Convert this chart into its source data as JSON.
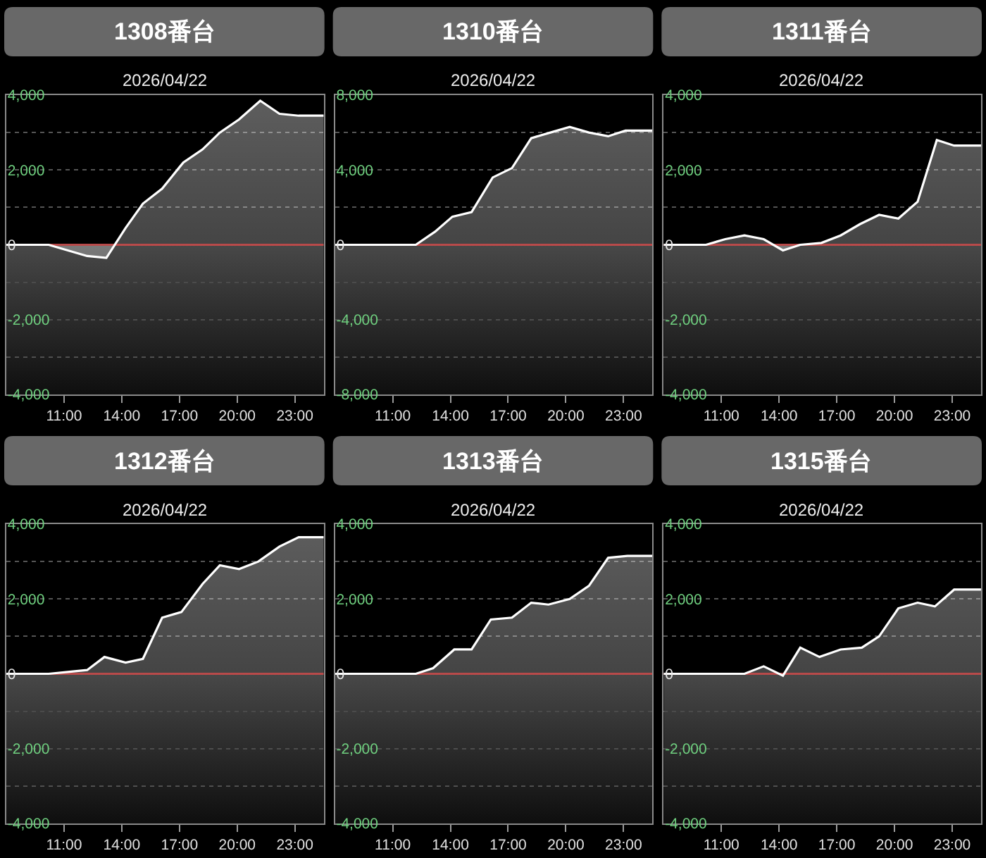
{
  "chart_data": [
    {
      "type": "area",
      "title": "1308番台",
      "subtitle": "2026/04/22",
      "x": [
        8,
        10.2,
        12.2,
        13.2,
        14.2,
        15.1,
        16.1,
        17.2,
        18.2,
        19.1,
        20.1,
        21.2,
        22.2,
        23.2,
        24.5
      ],
      "series": [
        {
          "color": "#ffffff",
          "values": [
            0,
            0,
            -300,
            -350,
            450,
            1100,
            1500,
            2200,
            2550,
            3000,
            3350,
            3850,
            3500,
            3450,
            3450
          ]
        }
      ],
      "xlim": [
        8,
        24.5
      ],
      "xticks": [
        {
          "value": 11,
          "label": "11:00"
        },
        {
          "value": 14,
          "label": "14:00"
        },
        {
          "value": 17,
          "label": "17:00"
        },
        {
          "value": 20,
          "label": "20:00"
        },
        {
          "value": 23,
          "label": "23:00"
        }
      ],
      "ylim": [
        -4000,
        4000
      ],
      "yticks": [
        {
          "value": -4000,
          "label": "-4,000"
        },
        {
          "value": -3000,
          "label": null
        },
        {
          "value": -2000,
          "label": "-2,000"
        },
        {
          "value": -1000,
          "label": null
        },
        0,
        {
          "value": 1000,
          "label": null
        },
        {
          "value": 2000,
          "label": "2,000"
        },
        {
          "value": 3000,
          "label": null
        },
        {
          "value": 4000,
          "label": "4,000"
        }
      ],
      "grid": "y",
      "ref_lines": [
        {
          "axis": "y",
          "value": 0,
          "color": "#b84a4a"
        }
      ],
      "bands": [
        {
          "axis": "y",
          "from": -4000,
          "to": 0,
          "color": "#484848"
        }
      ]
    },
    {
      "type": "area",
      "title": "1310番台",
      "subtitle": "2026/04/22",
      "x": [
        8,
        12.2,
        13.2,
        14.1,
        15.1,
        16.2,
        17.2,
        18.2,
        19.2,
        20.2,
        21.2,
        22.2,
        23.1,
        24.5
      ],
      "series": [
        {
          "color": "#ffffff",
          "values": [
            0,
            0,
            700,
            1500,
            1750,
            3600,
            4100,
            5700,
            6000,
            6300,
            6000,
            5800,
            6100,
            6100
          ]
        }
      ],
      "xlim": [
        8,
        24.5
      ],
      "xticks": [
        {
          "value": 11,
          "label": "11:00"
        },
        {
          "value": 14,
          "label": "14:00"
        },
        {
          "value": 17,
          "label": "17:00"
        },
        {
          "value": 20,
          "label": "20:00"
        },
        {
          "value": 23,
          "label": "23:00"
        }
      ],
      "ylim": [
        -8000,
        8000
      ],
      "yticks": [
        {
          "value": -8000,
          "label": "-8,000"
        },
        {
          "value": -6000,
          "label": null
        },
        {
          "value": -4000,
          "label": "-4,000"
        },
        {
          "value": -2000,
          "label": null
        },
        0,
        {
          "value": 2000,
          "label": null
        },
        {
          "value": 4000,
          "label": "4,000"
        },
        {
          "value": 6000,
          "label": null
        },
        {
          "value": 8000,
          "label": "8,000"
        }
      ],
      "grid": "y",
      "ref_lines": [
        {
          "axis": "y",
          "value": 0,
          "color": "#b84a4a"
        }
      ],
      "bands": [
        {
          "axis": "y",
          "from": -8000,
          "to": 0,
          "color": "#484848"
        }
      ]
    },
    {
      "type": "area",
      "title": "1311番台",
      "subtitle": "2026/04/22",
      "x": [
        8,
        10.2,
        11.2,
        12.2,
        13.2,
        14.2,
        15.1,
        16.2,
        17.2,
        18.2,
        19.2,
        20.2,
        21.2,
        22.2,
        23.1,
        24.5
      ],
      "series": [
        {
          "color": "#ffffff",
          "values": [
            0,
            0,
            150,
            250,
            150,
            -150,
            0,
            50,
            250,
            550,
            800,
            700,
            1150,
            2800,
            2650,
            2650
          ]
        }
      ],
      "xlim": [
        8,
        24.5
      ],
      "xticks": [
        {
          "value": 11,
          "label": "11:00"
        },
        {
          "value": 14,
          "label": "14:00"
        },
        {
          "value": 17,
          "label": "17:00"
        },
        {
          "value": 20,
          "label": "20:00"
        },
        {
          "value": 23,
          "label": "23:00"
        }
      ],
      "ylim": [
        -4000,
        4000
      ],
      "yticks": [
        {
          "value": -4000,
          "label": "-4,000"
        },
        {
          "value": -3000,
          "label": null
        },
        {
          "value": -2000,
          "label": "-2,000"
        },
        {
          "value": -1000,
          "label": null
        },
        0,
        {
          "value": 1000,
          "label": null
        },
        {
          "value": 2000,
          "label": "2,000"
        },
        {
          "value": 3000,
          "label": null
        },
        {
          "value": 4000,
          "label": "4,000"
        }
      ],
      "grid": "y",
      "ref_lines": [
        {
          "axis": "y",
          "value": 0,
          "color": "#b84a4a"
        }
      ],
      "bands": [
        {
          "axis": "y",
          "from": -4000,
          "to": 0,
          "color": "#484848"
        }
      ]
    },
    {
      "type": "area",
      "title": "1312番台",
      "subtitle": "2026/04/22",
      "x": [
        8,
        10.2,
        11.2,
        12.2,
        13.1,
        14.2,
        15.1,
        16.1,
        17.1,
        18.2,
        19.1,
        20.1,
        21.1,
        22.2,
        23.2,
        24.5
      ],
      "series": [
        {
          "color": "#ffffff",
          "values": [
            0,
            0,
            50,
            100,
            450,
            300,
            400,
            1500,
            1650,
            2400,
            2900,
            2800,
            3000,
            3400,
            3650,
            3650
          ]
        }
      ],
      "xlim": [
        8,
        24.5
      ],
      "xticks": [
        {
          "value": 11,
          "label": "11:00"
        },
        {
          "value": 14,
          "label": "14:00"
        },
        {
          "value": 17,
          "label": "17:00"
        },
        {
          "value": 20,
          "label": "20:00"
        },
        {
          "value": 23,
          "label": "23:00"
        }
      ],
      "ylim": [
        -4000,
        4000
      ],
      "yticks": [
        {
          "value": -4000,
          "label": "-4,000"
        },
        {
          "value": -3000,
          "label": null
        },
        {
          "value": -2000,
          "label": "-2,000"
        },
        {
          "value": -1000,
          "label": null
        },
        0,
        {
          "value": 1000,
          "label": null
        },
        {
          "value": 2000,
          "label": "2,000"
        },
        {
          "value": 3000,
          "label": null
        },
        {
          "value": 4000,
          "label": "4,000"
        }
      ],
      "grid": "y",
      "ref_lines": [
        {
          "axis": "y",
          "value": 0,
          "color": "#b84a4a"
        }
      ],
      "bands": [
        {
          "axis": "y",
          "from": -4000,
          "to": 0,
          "color": "#484848"
        }
      ]
    },
    {
      "type": "area",
      "title": "1313番台",
      "subtitle": "2026/04/22",
      "x": [
        8,
        12.2,
        13.1,
        14.2,
        15.1,
        16.1,
        17.2,
        18.2,
        19.1,
        20.2,
        21.2,
        22.2,
        23.2,
        24.5
      ],
      "series": [
        {
          "color": "#ffffff",
          "values": [
            0,
            0,
            150,
            650,
            650,
            1450,
            1500,
            1900,
            1850,
            2000,
            2350,
            3100,
            3150,
            3150
          ]
        }
      ],
      "xlim": [
        8,
        24.5
      ],
      "xticks": [
        {
          "value": 11,
          "label": "11:00"
        },
        {
          "value": 14,
          "label": "14:00"
        },
        {
          "value": 17,
          "label": "17:00"
        },
        {
          "value": 20,
          "label": "20:00"
        },
        {
          "value": 23,
          "label": "23:00"
        }
      ],
      "ylim": [
        -4000,
        4000
      ],
      "yticks": [
        {
          "value": -4000,
          "label": "-4,000"
        },
        {
          "value": -3000,
          "label": null
        },
        {
          "value": -2000,
          "label": "-2,000"
        },
        {
          "value": -1000,
          "label": null
        },
        0,
        {
          "value": 1000,
          "label": null
        },
        {
          "value": 2000,
          "label": "2,000"
        },
        {
          "value": 3000,
          "label": null
        },
        {
          "value": 4000,
          "label": "4,000"
        }
      ],
      "grid": "y",
      "ref_lines": [
        {
          "axis": "y",
          "value": 0,
          "color": "#b84a4a"
        }
      ],
      "bands": [
        {
          "axis": "y",
          "from": -4000,
          "to": 0,
          "color": "#484848"
        }
      ]
    },
    {
      "type": "area",
      "title": "1315番台",
      "subtitle": "2026/04/22",
      "x": [
        8,
        12.2,
        13.2,
        14.2,
        15.1,
        16.1,
        17.2,
        18.3,
        19.2,
        20.2,
        21.2,
        22.1,
        23.1,
        24.5
      ],
      "series": [
        {
          "color": "#ffffff",
          "values": [
            0,
            0,
            200,
            -50,
            700,
            450,
            650,
            700,
            1000,
            1750,
            1900,
            1800,
            2250,
            2250
          ]
        }
      ],
      "xlim": [
        8,
        24.5
      ],
      "xticks": [
        {
          "value": 11,
          "label": "11:00"
        },
        {
          "value": 14,
          "label": "14:00"
        },
        {
          "value": 17,
          "label": "17:00"
        },
        {
          "value": 20,
          "label": "20:00"
        },
        {
          "value": 23,
          "label": "23:00"
        }
      ],
      "ylim": [
        -4000,
        4000
      ],
      "yticks": [
        {
          "value": -4000,
          "label": "-4,000"
        },
        {
          "value": -3000,
          "label": null
        },
        {
          "value": -2000,
          "label": "-2,000"
        },
        {
          "value": -1000,
          "label": null
        },
        0,
        {
          "value": 1000,
          "label": null
        },
        {
          "value": 2000,
          "label": "2,000"
        },
        {
          "value": 3000,
          "label": null
        },
        {
          "value": 4000,
          "label": "4,000"
        }
      ],
      "grid": "y",
      "ref_lines": [
        {
          "axis": "y",
          "value": 0,
          "color": "#b84a4a"
        }
      ],
      "bands": [
        {
          "axis": "y",
          "from": -4000,
          "to": 0,
          "color": "#484848"
        }
      ]
    }
  ]
}
